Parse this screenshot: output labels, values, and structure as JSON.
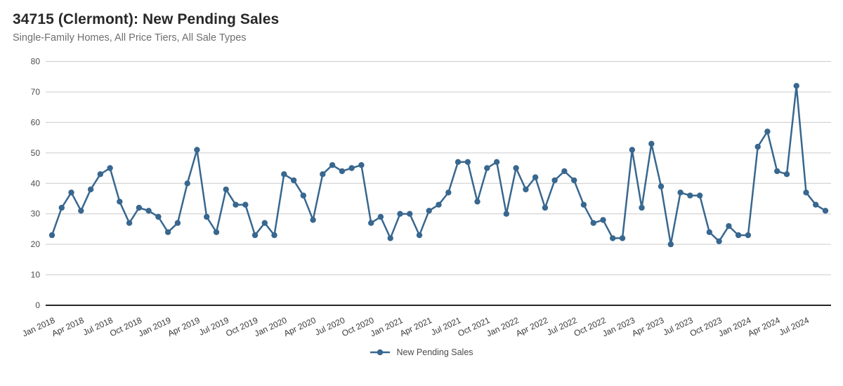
{
  "header": {
    "title": "34715 (Clermont): New Pending Sales",
    "subtitle": "Single-Family Homes, All Price Tiers, All Sale Types"
  },
  "legend": {
    "label": "New Pending Sales"
  },
  "colors": {
    "line": "#38678f",
    "grid": "#cccccc",
    "axis": "#262626",
    "x_tick_label": "#3a3a3a",
    "y_tick_label": "#4d4d4d"
  },
  "chart_data": {
    "type": "line",
    "title": "34715 (Clermont): New Pending Sales",
    "subtitle": "Single-Family Homes, All Price Tiers, All Sale Types",
    "categories": [
      "Jan 2018",
      "Feb 2018",
      "Mar 2018",
      "Apr 2018",
      "May 2018",
      "Jun 2018",
      "Jul 2018",
      "Aug 2018",
      "Sep 2018",
      "Oct 2018",
      "Nov 2018",
      "Dec 2018",
      "Jan 2019",
      "Feb 2019",
      "Mar 2019",
      "Apr 2019",
      "May 2019",
      "Jun 2019",
      "Jul 2019",
      "Aug 2019",
      "Sep 2019",
      "Oct 2019",
      "Nov 2019",
      "Dec 2019",
      "Jan 2020",
      "Feb 2020",
      "Mar 2020",
      "Apr 2020",
      "May 2020",
      "Jun 2020",
      "Jul 2020",
      "Aug 2020",
      "Sep 2020",
      "Oct 2020",
      "Nov 2020",
      "Dec 2020",
      "Jan 2021",
      "Feb 2021",
      "Mar 2021",
      "Apr 2021",
      "May 2021",
      "Jun 2021",
      "Jul 2021",
      "Aug 2021",
      "Sep 2021",
      "Oct 2021",
      "Nov 2021",
      "Dec 2021",
      "Jan 2022",
      "Feb 2022",
      "Mar 2022",
      "Apr 2022",
      "May 2022",
      "Jun 2022",
      "Jul 2022",
      "Aug 2022",
      "Sep 2022",
      "Oct 2022",
      "Nov 2022",
      "Dec 2022",
      "Jan 2023",
      "Feb 2023",
      "Mar 2023",
      "Apr 2023",
      "May 2023",
      "Jun 2023",
      "Jul 2023",
      "Aug 2023",
      "Sep 2023",
      "Oct 2023",
      "Nov 2023",
      "Dec 2023",
      "Jan 2024",
      "Feb 2024",
      "Mar 2024",
      "Apr 2024",
      "May 2024",
      "Jun 2024",
      "Jul 2024",
      "Aug 2024",
      "Sep 2024"
    ],
    "series": [
      {
        "name": "New Pending Sales",
        "values": [
          23,
          32,
          37,
          31,
          38,
          43,
          45,
          34,
          27,
          32,
          31,
          29,
          24,
          27,
          40,
          51,
          29,
          24,
          38,
          33,
          33,
          23,
          27,
          23,
          43,
          41,
          36,
          28,
          43,
          46,
          44,
          45,
          46,
          27,
          29,
          22,
          30,
          30,
          23,
          31,
          33,
          37,
          47,
          47,
          34,
          45,
          47,
          30,
          45,
          38,
          42,
          32,
          41,
          44,
          41,
          33,
          27,
          28,
          22,
          22,
          51,
          32,
          53,
          39,
          20,
          37,
          36,
          36,
          24,
          21,
          26,
          23,
          23,
          52,
          57,
          44,
          43,
          72,
          37,
          33,
          31
        ]
      }
    ],
    "xlabel": "",
    "ylabel": "",
    "ylim": [
      0,
      80
    ],
    "y_ticks": [
      0,
      10,
      20,
      30,
      40,
      50,
      60,
      70,
      80
    ],
    "x_tick_every": 3,
    "grid": true,
    "legend_position": "bottom"
  }
}
